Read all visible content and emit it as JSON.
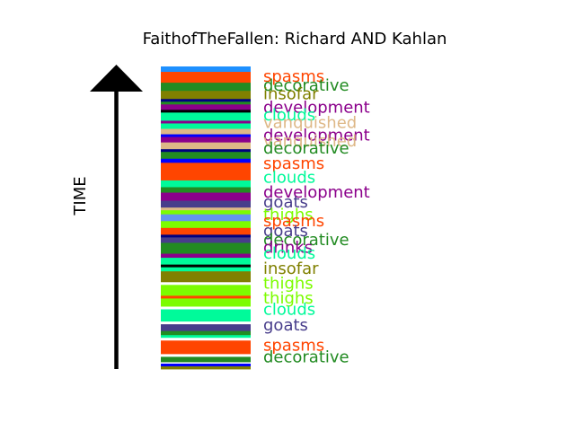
{
  "chart_data": {
    "type": "bar",
    "title": "FaithofTheFallen: Richard AND Kahlan",
    "ylabel": "TIME",
    "xlabel": "",
    "ylim": [
      0,
      1
    ],
    "grid": false,
    "legend": "none",
    "bands": [
      {
        "color": "#1e90ff",
        "size": 0.4
      },
      {
        "color": "#ff4500",
        "size": 0.8
      },
      {
        "color": "#228b22",
        "size": 0.6
      },
      {
        "color": "#808000",
        "size": 0.6
      },
      {
        "color": "#000080",
        "size": 0.2
      },
      {
        "color": "#228b22",
        "size": 0.2
      },
      {
        "color": "#8b008b",
        "size": 0.4
      },
      {
        "color": "#000000",
        "size": 0.2
      },
      {
        "color": "#00fa9a",
        "size": 0.6
      },
      {
        "color": "#8b008b",
        "size": 0.2
      },
      {
        "color": "#00fa9a",
        "size": 0.4
      },
      {
        "color": "#deb887",
        "size": 0.4
      },
      {
        "color": "#0000ff",
        "size": 0.2
      },
      {
        "color": "#8b008b",
        "size": 0.4
      },
      {
        "color": "#deb887",
        "size": 0.5
      },
      {
        "color": "#000080",
        "size": 0.2
      },
      {
        "color": "#228b22",
        "size": 0.5
      },
      {
        "color": "#0000ff",
        "size": 0.3
      },
      {
        "color": "#ff4500",
        "size": 1.3
      },
      {
        "color": "#00fa9a",
        "size": 0.5
      },
      {
        "color": "#228b22",
        "size": 0.4
      },
      {
        "color": "#8b008b",
        "size": 0.6
      },
      {
        "color": "#483d8b",
        "size": 0.5
      },
      {
        "color": "#deb887",
        "size": 0.2
      },
      {
        "color": "#7cfc00",
        "size": 0.3
      },
      {
        "color": "#6495ed",
        "size": 0.5
      },
      {
        "color": "#7cfc00",
        "size": 0.5
      },
      {
        "color": "#ff4500",
        "size": 0.5
      },
      {
        "color": "#000080",
        "size": 0.2
      },
      {
        "color": "#483d8b",
        "size": 0.4
      },
      {
        "color": "#228b22",
        "size": 0.8
      },
      {
        "color": "#8b008b",
        "size": 0.3
      },
      {
        "color": "#00fa9a",
        "size": 0.5
      },
      {
        "color": "#000000",
        "size": 0.2
      },
      {
        "color": "#00fa9a",
        "size": 0.3
      },
      {
        "color": "#808000",
        "size": 0.8
      },
      {
        "color": "#ffffff",
        "size": 0.2
      },
      {
        "color": "#7cfc00",
        "size": 0.8
      },
      {
        "color": "#ff4500",
        "size": 0.2
      },
      {
        "color": "#7cfc00",
        "size": 0.6
      },
      {
        "color": "#ffffff",
        "size": 0.2
      },
      {
        "color": "#00fa9a",
        "size": 0.9
      },
      {
        "color": "#ffffff",
        "size": 0.2
      },
      {
        "color": "#483d8b",
        "size": 0.5
      },
      {
        "color": "#228b22",
        "size": 0.3
      },
      {
        "color": "#00fa9a",
        "size": 0.2
      },
      {
        "color": "#ffffff",
        "size": 0.2
      },
      {
        "color": "#ff4500",
        "size": 1.0
      },
      {
        "color": "#ffffff",
        "size": 0.2
      },
      {
        "color": "#228b22",
        "size": 0.4
      },
      {
        "color": "#ffffff",
        "size": 0.1
      },
      {
        "color": "#0000ff",
        "size": 0.2
      },
      {
        "color": "#808000",
        "size": 0.2
      }
    ],
    "labels": [
      {
        "text": "spasms",
        "color": "#ff4500",
        "pos": 0.032
      },
      {
        "text": "decorative",
        "color": "#228b22",
        "pos": 0.062
      },
      {
        "text": "insofar",
        "color": "#808000",
        "pos": 0.09
      },
      {
        "text": "development",
        "color": "#8b008b",
        "pos": 0.135
      },
      {
        "text": "clouds",
        "color": "#00fa9a",
        "pos": 0.16
      },
      {
        "text": "vanquished",
        "color": "#deb887",
        "pos": 0.185
      },
      {
        "text": "development",
        "color": "#8b008b",
        "pos": 0.227
      },
      {
        "text": "vanquished",
        "color": "#deb887",
        "pos": 0.247
      },
      {
        "text": "decorative",
        "color": "#228b22",
        "pos": 0.27
      },
      {
        "text": "spasms",
        "color": "#ff4500",
        "pos": 0.32
      },
      {
        "text": "clouds",
        "color": "#00fa9a",
        "pos": 0.367
      },
      {
        "text": "development",
        "color": "#8b008b",
        "pos": 0.415
      },
      {
        "text": "goats",
        "color": "#483d8b",
        "pos": 0.448
      },
      {
        "text": "thighs",
        "color": "#7cfc00",
        "pos": 0.49
      },
      {
        "text": "spasms",
        "color": "#ff4500",
        "pos": 0.51
      },
      {
        "text": "goats",
        "color": "#483d8b",
        "pos": 0.543
      },
      {
        "text": "decorative",
        "color": "#228b22",
        "pos": 0.573
      },
      {
        "text": "drinks",
        "color": "#8b008b",
        "pos": 0.598
      },
      {
        "text": "clouds",
        "color": "#00fa9a",
        "pos": 0.617
      },
      {
        "text": "insofar",
        "color": "#808000",
        "pos": 0.667
      },
      {
        "text": "thighs",
        "color": "#7cfc00",
        "pos": 0.717
      },
      {
        "text": "thighs",
        "color": "#7cfc00",
        "pos": 0.765
      },
      {
        "text": "clouds",
        "color": "#00fa9a",
        "pos": 0.803
      },
      {
        "text": "goats",
        "color": "#483d8b",
        "pos": 0.855
      },
      {
        "text": "spasms",
        "color": "#ff4500",
        "pos": 0.922
      },
      {
        "text": "decorative",
        "color": "#228b22",
        "pos": 0.96
      }
    ]
  }
}
